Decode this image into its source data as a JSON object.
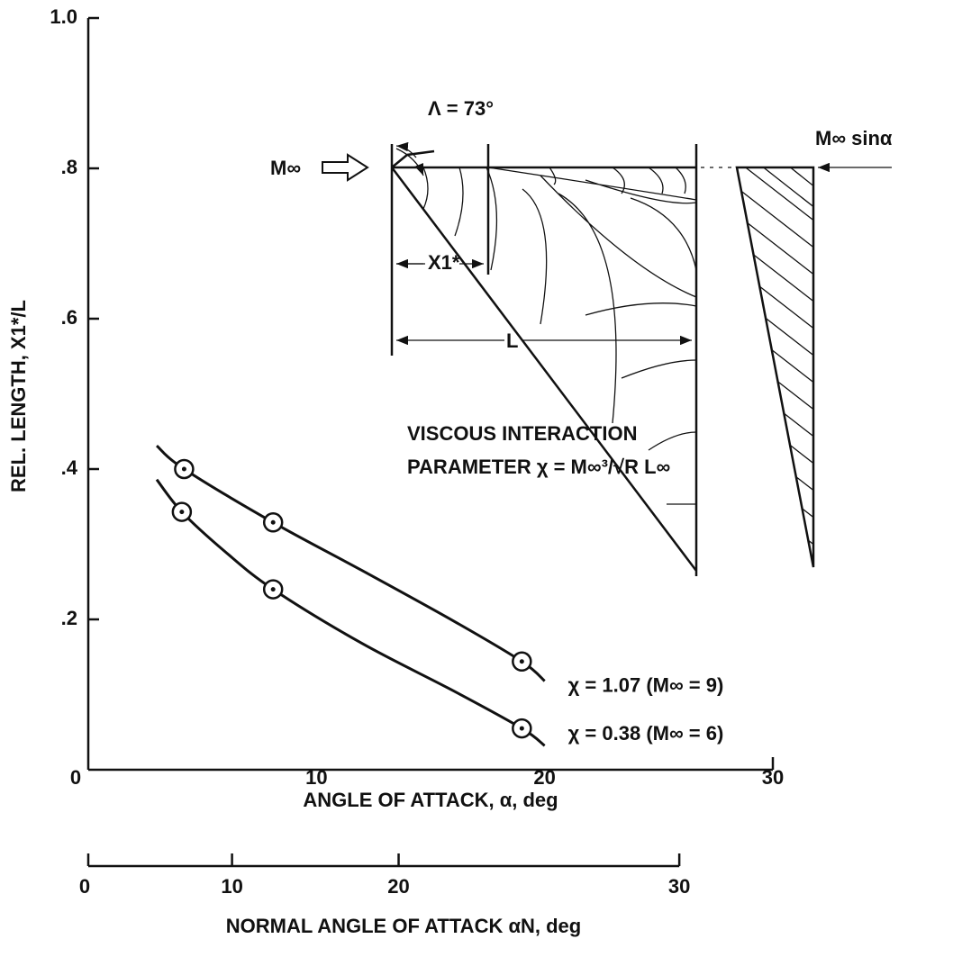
{
  "chart_data": {
    "type": "line",
    "x_label": "ANGLE OF ATTACK, α, deg",
    "y_label": "REL. LENGTH, X1*/L",
    "xlim": [
      0,
      30
    ],
    "ylim": [
      0,
      1.0
    ],
    "xticks": [
      0,
      10,
      20,
      30
    ],
    "yticks": [
      {
        "value": 0.2,
        "label": ".2"
      },
      {
        "value": 0.4,
        "label": ".4"
      },
      {
        "value": 0.6,
        "label": ".6"
      },
      {
        "value": 0.8,
        "label": ".8"
      },
      {
        "value": 1.0,
        "label": "1.0"
      }
    ],
    "x2_label": "NORMAL ANGLE OF ATTACK αN, deg",
    "x2ticks": [
      0,
      10,
      20,
      30
    ],
    "x2ticks_at_x": [
      0,
      6.3,
      13.6,
      25.9
    ],
    "series": [
      {
        "name": "χ = 1.07 (M∞ = 9)",
        "color": "#111111",
        "x": [
          4.2,
          8.1,
          19.0
        ],
        "values": [
          0.4,
          0.329,
          0.144
        ],
        "fit_x": [
          3,
          4.2,
          8.1,
          12,
          16,
          19.0,
          20
        ],
        "fit_values": [
          0.431,
          0.4,
          0.329,
          0.265,
          0.198,
          0.144,
          0.118
        ]
      },
      {
        "name": "χ = 0.38 (M∞ = 6)",
        "color": "#111111",
        "x": [
          4.1,
          8.1,
          19.0
        ],
        "values": [
          0.343,
          0.24,
          0.055
        ],
        "fit_x": [
          3,
          4.1,
          6,
          8.1,
          12,
          16,
          19.0,
          20
        ],
        "fit_values": [
          0.386,
          0.343,
          0.29,
          0.24,
          0.168,
          0.105,
          0.055,
          0.032
        ]
      }
    ],
    "annotations": [
      "VISCOUS INTERACTION",
      "PARAMETER χ = M∞³/√R L∞"
    ],
    "inset_labels": {
      "sweep": "Λ = 73°",
      "freestream": "M∞",
      "crossflow": "M∞  sinα",
      "x1": "X1*",
      "length": "L"
    }
  }
}
